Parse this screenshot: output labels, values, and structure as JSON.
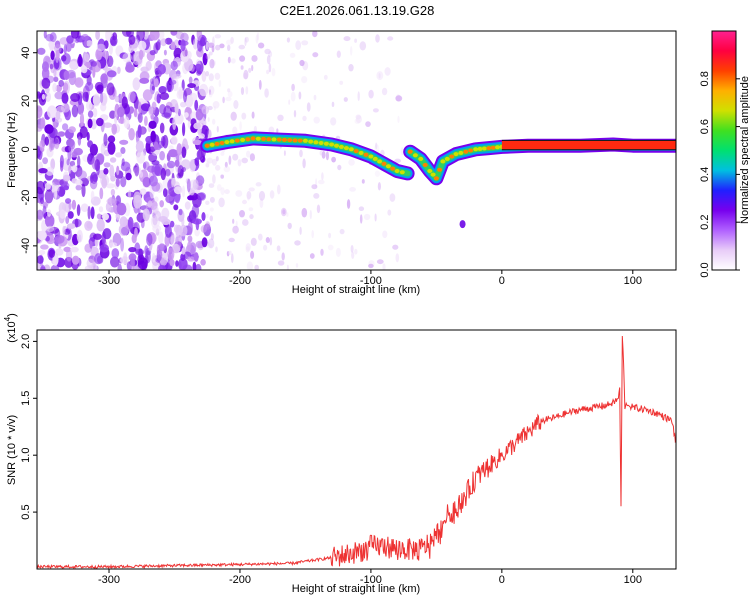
{
  "figure_title": "C2E1.2026.061.13.19.G28",
  "chart_data": [
    {
      "type": "heatmap",
      "title": "C2E1.2026.061.13.19.G28",
      "xlabel": "Height of straight line (km)",
      "ylabel": "Frequency (Hz)",
      "xlim": [
        -355,
        133
      ],
      "ylim": [
        -50,
        49
      ],
      "xticks": [
        -300,
        -200,
        -100,
        0,
        100
      ],
      "yticks": [
        -40,
        -20,
        0,
        20,
        40
      ],
      "colorbar": {
        "label": "Normalized spectral amplitude",
        "range": [
          0.0,
          1.0
        ],
        "ticks": [
          "0.0",
          "0.2",
          "0.4",
          "0.6",
          "0.8"
        ],
        "tick_values": [
          0.0,
          0.2,
          0.4,
          0.6,
          0.8
        ],
        "colormap": [
          "#ffffff",
          "#e8ccf8",
          "#b060ff",
          "#7700ee",
          "#2020ff",
          "#00c0e0",
          "#00e070",
          "#40e020",
          "#d0e000",
          "#ffb000",
          "#ff4000",
          "#ff0040",
          "#ff2090"
        ]
      },
      "noise_region_km": [
        -355,
        -225
      ],
      "faint_region_km": [
        -225,
        -75
      ],
      "signal_trace": [
        {
          "x": -225,
          "y": 1.5
        },
        {
          "x": -210,
          "y": 3
        },
        {
          "x": -190,
          "y": 4.5
        },
        {
          "x": -170,
          "y": 4
        },
        {
          "x": -150,
          "y": 3.5
        },
        {
          "x": -130,
          "y": 2
        },
        {
          "x": -115,
          "y": 0
        },
        {
          "x": -100,
          "y": -3
        },
        {
          "x": -90,
          "y": -6
        },
        {
          "x": -80,
          "y": -9
        },
        {
          "x": -72,
          "y": -10
        },
        {
          "x": -70,
          "y": -1
        },
        {
          "x": -62,
          "y": -4
        },
        {
          "x": -55,
          "y": -9
        },
        {
          "x": -50,
          "y": -12
        },
        {
          "x": -45,
          "y": -5
        },
        {
          "x": -35,
          "y": -2
        },
        {
          "x": -20,
          "y": 0
        },
        {
          "x": -10,
          "y": 0.5
        },
        {
          "x": 0,
          "y": 1
        },
        {
          "x": 20,
          "y": 1.5
        },
        {
          "x": 60,
          "y": 1.5
        },
        {
          "x": 85,
          "y": 2
        },
        {
          "x": 100,
          "y": 1.5
        },
        {
          "x": 133,
          "y": 1.5
        }
      ],
      "isolated_blob": {
        "x": -30,
        "y": -31
      }
    },
    {
      "type": "line",
      "xlabel": "Height of straight line (km)",
      "ylabel": "SNR (10 * v/v)",
      "y_multiplier": "(x10⁴)",
      "y_multiplier_base": "(x10",
      "y_multiplier_exp": "4",
      "y_multiplier_close": ")",
      "xlim": [
        -355,
        133
      ],
      "ylim": [
        0.0,
        2.1
      ],
      "xticks": [
        -300,
        -200,
        -100,
        0,
        100
      ],
      "yticks": [
        "0.5",
        "1.0",
        "1.5",
        "2.0"
      ],
      "ytick_values": [
        0.5,
        1.0,
        1.5,
        2.0
      ],
      "series": [
        {
          "name": "SNR",
          "color": "#ee3333",
          "x": [
            -355,
            -300,
            -250,
            -200,
            -160,
            -130,
            -110,
            -100,
            -90,
            -80,
            -70,
            -60,
            -50,
            -40,
            -30,
            -20,
            -10,
            0,
            10,
            20,
            30,
            40,
            50,
            60,
            70,
            80,
            85,
            89,
            90,
            91,
            92,
            93,
            94,
            95,
            100,
            110,
            120,
            130,
            133
          ],
          "y": [
            0.02,
            0.02,
            0.03,
            0.04,
            0.05,
            0.1,
            0.15,
            0.2,
            0.2,
            0.18,
            0.17,
            0.18,
            0.3,
            0.5,
            0.6,
            0.8,
            0.9,
            1.0,
            1.1,
            1.2,
            1.3,
            1.33,
            1.37,
            1.4,
            1.42,
            1.44,
            1.46,
            1.5,
            1.6,
            0.55,
            2.05,
            1.8,
            1.4,
            1.45,
            1.42,
            1.4,
            1.36,
            1.3,
            1.1
          ]
        }
      ]
    }
  ]
}
